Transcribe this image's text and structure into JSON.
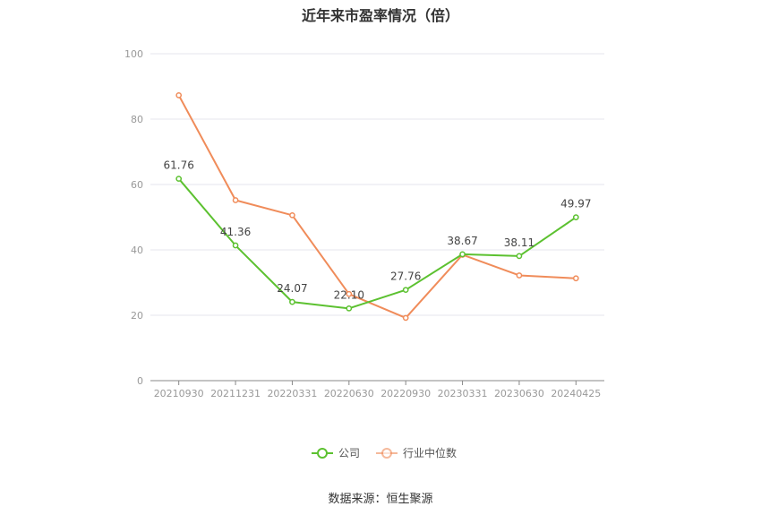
{
  "chart_data": {
    "type": "line",
    "title": "近年来市盈率情况（倍）",
    "categories": [
      "20210930",
      "20211231",
      "20220331",
      "20220630",
      "20220930",
      "20230331",
      "20230630",
      "20240425"
    ],
    "series": [
      {
        "name": "公司",
        "color": "#5cc130",
        "values": [
          61.76,
          41.36,
          24.07,
          22.1,
          27.76,
          38.67,
          38.11,
          49.97
        ],
        "labels": [
          "61.76",
          "41.36",
          "24.07",
          "22.10",
          "27.76",
          "38.67",
          "38.11",
          "49.97"
        ]
      },
      {
        "name": "行业中位数",
        "color": "#f08c5a",
        "values": [
          87.3,
          55.2,
          50.6,
          26.5,
          19.2,
          38.5,
          32.2,
          31.3
        ]
      }
    ],
    "yticks": [
      "0",
      "20",
      "40",
      "60",
      "80",
      "100"
    ],
    "ylim": [
      0,
      100
    ],
    "grid": true,
    "legend_position": "bottom"
  },
  "source": "数据来源：恒生聚源"
}
